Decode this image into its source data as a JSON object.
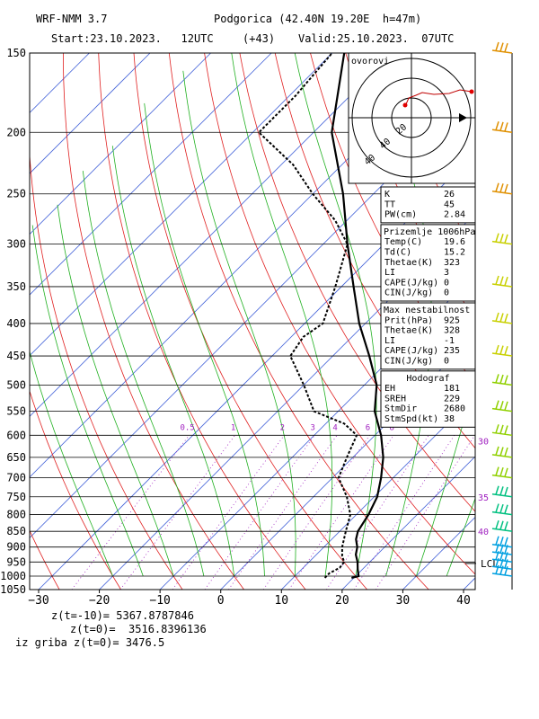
{
  "header": {
    "model": "WRF-NMM 3.7",
    "station": "Podgorica (42.40N 19.20E  h=47m)",
    "start": "Start:23.10.2023.   12UTC",
    "offset": "(+43)",
    "valid": "Valid:25.10.2023.  07UTC"
  },
  "footer": {
    "line1": "z(t=-10)= 5367.8787846",
    "line2": "z(t=0)=  3516.8396136",
    "line3": "iz griba z(t=0)= 3476.5"
  },
  "hodograph": {
    "title": "ovorovi",
    "ring_labels": [
      "20",
      "40",
      "40"
    ]
  },
  "indices": [
    {
      "section": "",
      "rows": [
        [
          "K",
          "26"
        ],
        [
          "TT",
          "45"
        ],
        [
          "PW(cm)",
          "2.84"
        ]
      ]
    },
    {
      "section": "Prizemlje 1006hPa",
      "rows": [
        [
          "Temp(C)",
          "19.6"
        ],
        [
          "Td(C)",
          "15.2"
        ],
        [
          "Thetae(K)",
          "323"
        ],
        [
          "LI",
          "3"
        ],
        [
          "CAPE(J/kg)",
          "0"
        ],
        [
          "CIN(J/kg)",
          "0"
        ]
      ]
    },
    {
      "section": "Max nestabilnost",
      "rows": [
        [
          "Prit(hPa)",
          "925"
        ],
        [
          "Thetae(K)",
          "328"
        ],
        [
          "LI",
          "-1"
        ],
        [
          "CAPE(J/kg)",
          "235"
        ],
        [
          "CIN(J/kg)",
          "0"
        ]
      ]
    },
    {
      "section": "Hodograf",
      "rows": [
        [
          "EH",
          "181"
        ],
        [
          "SREH",
          "229"
        ],
        [
          "StmDir",
          "2680"
        ],
        [
          "StmSpd(kt)",
          "38"
        ]
      ]
    }
  ],
  "chart_data": {
    "type": "line",
    "kind": "skew-T log-p sounding",
    "xlabel": "",
    "ylabel": "",
    "x_ticks": [
      -30,
      -20,
      -10,
      0,
      10,
      20,
      30,
      40
    ],
    "x_range": [
      -30,
      43
    ],
    "pressure_levels": [
      150,
      200,
      250,
      300,
      350,
      400,
      450,
      500,
      550,
      600,
      650,
      700,
      750,
      800,
      850,
      900,
      950,
      1000,
      1050
    ],
    "pressure_range": [
      150,
      1050
    ],
    "mixing_ratio_labels": [
      "0.5",
      "1",
      "2",
      "3",
      "4",
      "6",
      "8"
    ],
    "height_labels": [
      "30",
      "35",
      "40"
    ],
    "lcl_label": "LCL",
    "series": [
      {
        "color": "#000000",
        "points": [
          [
            1006,
            19.6
          ],
          [
            1000,
            20.5
          ],
          [
            975,
            19.2
          ],
          [
            950,
            18.0
          ],
          [
            925,
            16.5
          ],
          [
            900,
            15.5
          ],
          [
            875,
            14.0
          ],
          [
            850,
            13.0
          ],
          [
            800,
            12.0
          ],
          [
            750,
            10.5
          ],
          [
            700,
            8.0
          ],
          [
            650,
            5.0
          ],
          [
            600,
            1.0
          ],
          [
            550,
            -4.0
          ],
          [
            500,
            -8.0
          ],
          [
            450,
            -14.0
          ],
          [
            400,
            -21.0
          ],
          [
            350,
            -28.0
          ],
          [
            300,
            -36.0
          ],
          [
            250,
            -45.0
          ],
          [
            200,
            -57.0
          ],
          [
            150,
            -68.0
          ]
        ]
      },
      {
        "color": "#000000",
        "dashed": true,
        "points": [
          [
            1006,
            15.2
          ],
          [
            990,
            15.2
          ],
          [
            970,
            16.0
          ],
          [
            950,
            15.8
          ],
          [
            930,
            14.5
          ],
          [
            900,
            13.0
          ],
          [
            850,
            11.0
          ],
          [
            800,
            9.0
          ],
          [
            750,
            5.5
          ],
          [
            700,
            1.0
          ],
          [
            650,
            -1.0
          ],
          [
            600,
            -3.0
          ],
          [
            575,
            -7.0
          ],
          [
            550,
            -14.0
          ],
          [
            500,
            -20.0
          ],
          [
            450,
            -27.0
          ],
          [
            420,
            -28.0
          ],
          [
            400,
            -27.0
          ],
          [
            350,
            -31.0
          ],
          [
            300,
            -36.0
          ],
          [
            275,
            -42.0
          ],
          [
            250,
            -50.0
          ],
          [
            225,
            -58.0
          ],
          [
            200,
            -69.0
          ],
          [
            175,
            -69.0
          ],
          [
            150,
            -70.0
          ]
        ]
      }
    ],
    "wind_barb_levels": [
      150,
      200,
      250,
      300,
      350,
      400,
      450,
      500,
      550,
      600,
      650,
      700,
      750,
      800,
      850,
      900,
      925,
      950,
      975,
      1000
    ]
  }
}
